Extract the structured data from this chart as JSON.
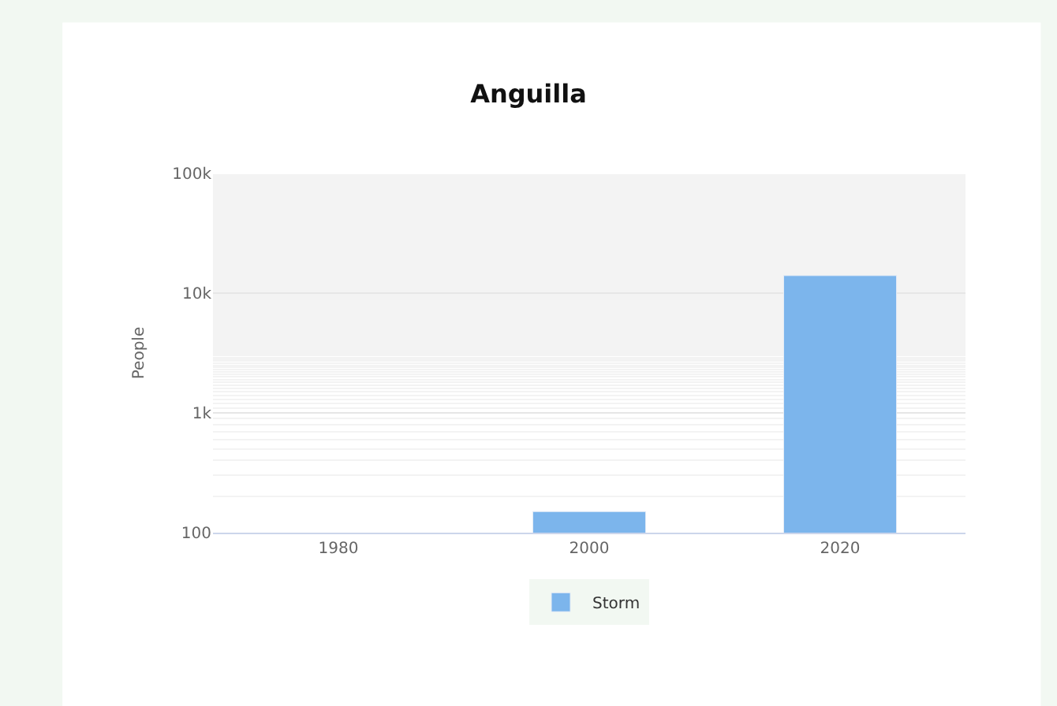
{
  "chart_data": {
    "type": "bar",
    "title": "Anguilla",
    "ylabel": "People",
    "categories": [
      "1980",
      "2000",
      "2020"
    ],
    "series": [
      {
        "name": "Storm",
        "color": "#7cb5ec",
        "values": [
          null,
          150,
          14000
        ]
      }
    ],
    "log": true,
    "ylim": [
      100,
      100000
    ],
    "yticks": [
      100,
      {
        "value": 1000,
        "label": "1k"
      },
      {
        "value": 10000,
        "label": "10k"
      },
      {
        "value": 100000,
        "label": "100k"
      }
    ],
    "grid": "y",
    "legend": "bottom"
  }
}
